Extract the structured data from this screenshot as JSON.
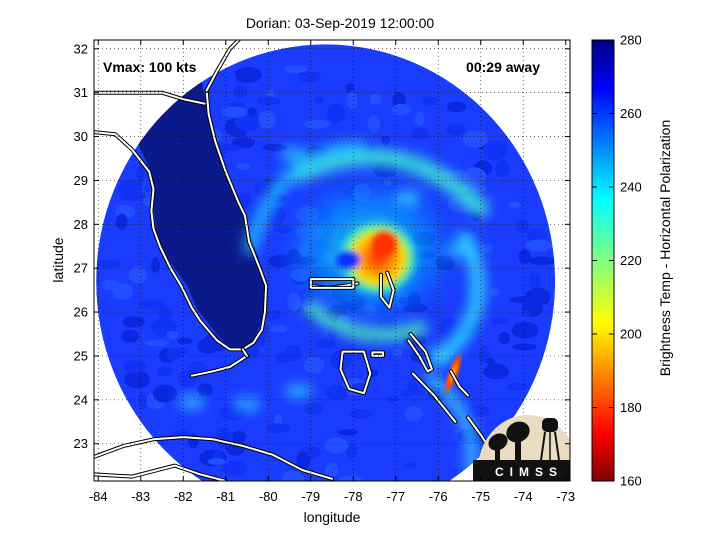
{
  "chart_data": {
    "type": "heatmap",
    "title": "Dorian: 03-Sep-2019 12:00:00",
    "xlabel": "longitude",
    "ylabel": "latitude",
    "xlim": [
      -84.1,
      -72.9
    ],
    "ylim": [
      22.15,
      32.2
    ],
    "x_ticks": [
      -84,
      -83,
      -82,
      -81,
      -80,
      -79,
      -78,
      -77,
      -76,
      -75,
      -74,
      -73
    ],
    "y_ticks": [
      23,
      24,
      25,
      26,
      27,
      28,
      29,
      30,
      31,
      32
    ],
    "grid": true,
    "annotations": {
      "vmax": "Vmax: 100 kts",
      "time_away": "00:29 away"
    },
    "colorbar": {
      "label": "Brightness Temp - Horizontal Polarization",
      "range": [
        160,
        280
      ],
      "ticks": [
        160,
        180,
        200,
        220,
        240,
        260,
        280
      ],
      "colormap": "jet",
      "placement": "right"
    },
    "swath": {
      "center": [
        -78.65,
        26.7
      ],
      "radius_deg": 5.4
    },
    "storm_center": [
      -77.6,
      27.0
    ],
    "logo_text": "CIMSS"
  }
}
